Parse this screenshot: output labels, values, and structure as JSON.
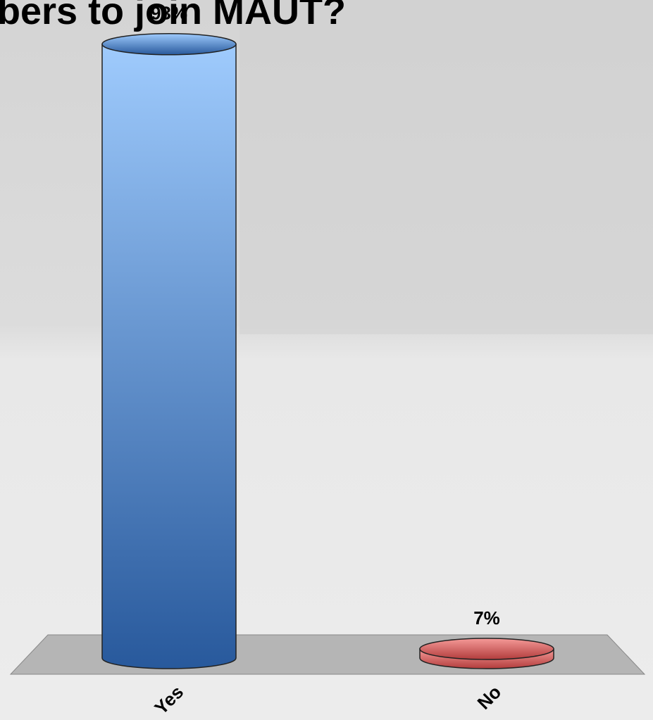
{
  "chart_data": {
    "type": "bar3d",
    "title": "bers to join MAUT?",
    "categories": [
      "Yes",
      "No"
    ],
    "values": [
      93,
      7
    ],
    "value_labels": [
      "93%",
      "7%"
    ],
    "colors": [
      "#3d74bd",
      "#d9605f"
    ],
    "ylim": [
      5.7,
      100
    ]
  }
}
